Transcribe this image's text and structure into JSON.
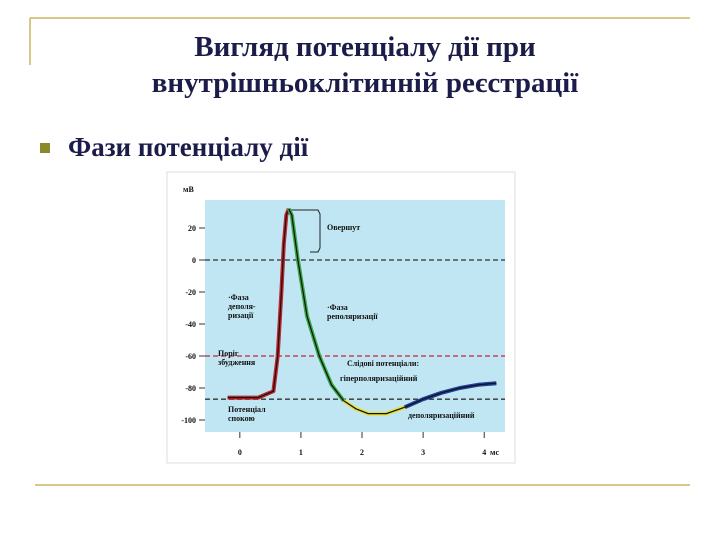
{
  "slide": {
    "title": [
      "Вигляд потенціалу дії при",
      "внутрішньоклітинній реєстрації"
    ],
    "bullet": "Фази потенціалу дії"
  },
  "chart_data": {
    "type": "line",
    "y_label": "мВ",
    "x_label": "мс",
    "xlim": [
      -0.57,
      4.34
    ],
    "ylim": [
      -107.5,
      37.5
    ],
    "xticks": [
      0,
      1,
      2,
      3,
      4
    ],
    "yticks": [
      20,
      0,
      -20,
      -40,
      -60,
      -80,
      -100
    ],
    "series": [
      {
        "color": "#c0262b",
        "x": [
          -0.2,
          0.3,
          0.55,
          0.62,
          0.68,
          0.72,
          0.76,
          0.8
        ],
        "values": [
          -86,
          -86,
          -82,
          -60,
          -20,
          10,
          28,
          32
        ]
      },
      {
        "color": "#3aa845",
        "x": [
          0.8,
          0.85,
          0.95,
          1.1,
          1.3,
          1.5,
          1.7
        ],
        "values": [
          32,
          28,
          0,
          -35,
          -60,
          -78,
          -88
        ]
      },
      {
        "color": "#e8e03a",
        "x": [
          1.7,
          1.9,
          2.1,
          2.4,
          2.7
        ],
        "values": [
          -88,
          -93,
          -96,
          -96,
          -92
        ]
      },
      {
        "color": "#1f3f9a",
        "x": [
          2.7,
          3.0,
          3.3,
          3.6,
          3.9,
          4.2
        ],
        "values": [
          -92,
          -87,
          -83,
          -80,
          -78,
          -77
        ]
      }
    ],
    "hlines": [
      {
        "value": 0,
        "color": "#333333"
      },
      {
        "value": -60,
        "color": "#d0203a"
      },
      {
        "value": -87,
        "color": "#333333"
      }
    ],
    "annotations": [
      {
        "lines": [
          "Овершут"
        ]
      },
      {
        "lines": [
          "·Фаза",
          "деполя-",
          "ризації"
        ]
      },
      {
        "lines": [
          "·Фаза",
          "реполяризації"
        ]
      },
      {
        "lines": [
          "Поріг",
          "збудження"
        ]
      },
      {
        "lines": [
          "Слідові потенціали:"
        ]
      },
      {
        "lines": [
          "гіперполяризаційний"
        ]
      },
      {
        "lines": [
          "деполяризаційний"
        ]
      },
      {
        "lines": [
          "Потенціал",
          "спокою"
        ]
      }
    ]
  }
}
